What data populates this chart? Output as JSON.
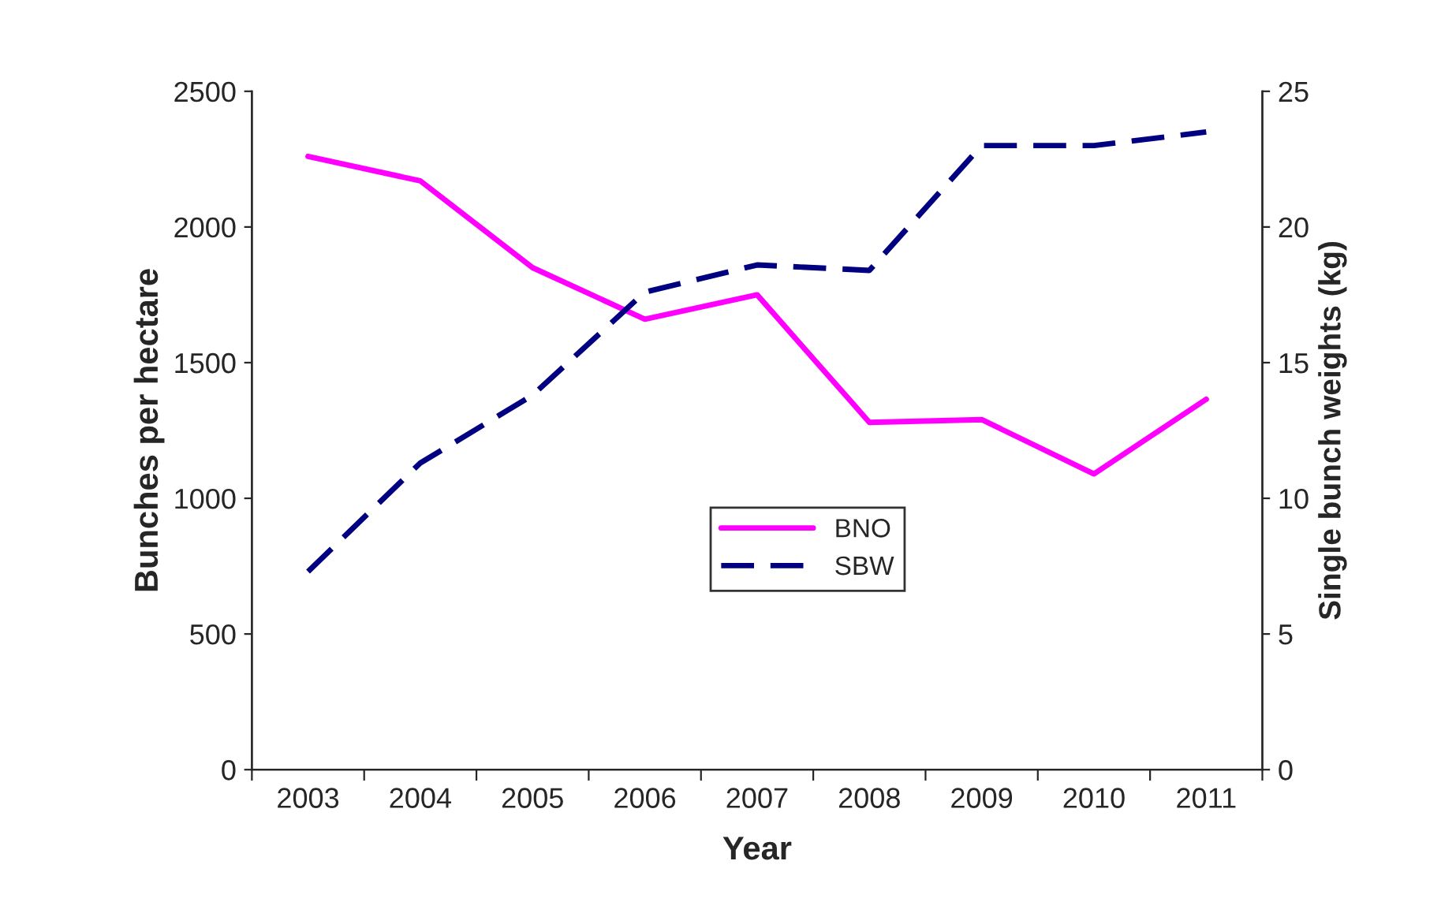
{
  "chart_data": {
    "type": "line",
    "xlabel": "Year",
    "ylabel": "Bunches per hectare",
    "y2label": "Single bunch weights (kg)",
    "categories": [
      "2003",
      "2004",
      "2005",
      "2006",
      "2007",
      "2008",
      "2009",
      "2010",
      "2011"
    ],
    "series": [
      {
        "name": "BNO",
        "color": "#ff00ff",
        "line_style": "solid",
        "values": [
          2260,
          2170,
          1850,
          1660,
          1750,
          1280,
          1290,
          1090,
          1365
        ]
      },
      {
        "name": "SBW",
        "color": "#000080",
        "line_style": "dashed",
        "axis": "y2",
        "values": [
          7.3,
          11.3,
          13.8,
          17.6,
          18.6,
          18.4,
          23.0,
          23.0,
          23.5
        ]
      }
    ],
    "ylim": [
      0,
      2500
    ],
    "yticks": [
      0,
      500,
      1000,
      1500,
      2000,
      2500
    ],
    "y2lim": [
      0,
      25
    ],
    "y2ticks": [
      0,
      5,
      10,
      15,
      20,
      25
    ],
    "grid": false,
    "legend": "center",
    "marker": "none"
  }
}
